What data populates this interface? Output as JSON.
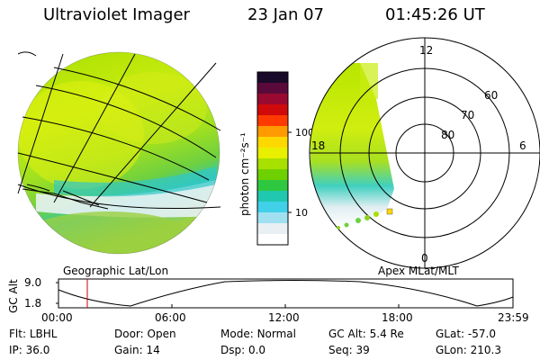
{
  "header": {
    "title": "Ultraviolet Imager",
    "date": "23 Jan 07",
    "time": "01:45:26 UT"
  },
  "colorbar": {
    "unit_label": "photon cm⁻²s⁻¹",
    "ticks": [
      "100",
      "10"
    ],
    "colors": [
      "#1a0a2a",
      "#5a0a3a",
      "#9a0a30",
      "#d00a0a",
      "#ff3a00",
      "#ff9a00",
      "#ffd800",
      "#e8f000",
      "#a8e000",
      "#6ed000",
      "#2ec840",
      "#20c8b0",
      "#40d0e8",
      "#a0e0f0",
      "#e8f0f4",
      "#ffffff"
    ]
  },
  "left_panel": {
    "caption": "Geographic Lat/Lon"
  },
  "polar_plot": {
    "caption": "Apex MLat/MLT",
    "mlt_labels": {
      "top": "12",
      "right": "6",
      "bottom": "0",
      "left": "18"
    },
    "lat_labels": [
      "60",
      "70",
      "80"
    ]
  },
  "altitude_plot": {
    "ylabel": "GC Alt",
    "yticks": [
      "9.0",
      "1.8"
    ],
    "xticks": [
      "00:00",
      "06:00",
      "12:00",
      "18:00",
      "23:59"
    ],
    "marker_color": "#cc0000"
  },
  "info": {
    "row1": [
      {
        "key": "Flt:",
        "value": "LBHL"
      },
      {
        "key": "Door:",
        "value": "Open"
      },
      {
        "key": "Mode:",
        "value": "Normal"
      },
      {
        "key": "GC Alt:",
        "value": "5.4 Re"
      },
      {
        "key": "GLat:",
        "value": "-57.0"
      }
    ],
    "row2": [
      {
        "key": "IP:",
        "value": "36.0"
      },
      {
        "key": "Gain:",
        "value": "14"
      },
      {
        "key": "Dsp:",
        "value": "0.0"
      },
      {
        "key": "Seq:",
        "value": "39"
      },
      {
        "key": "GLon:",
        "value": "210.3"
      }
    ]
  }
}
